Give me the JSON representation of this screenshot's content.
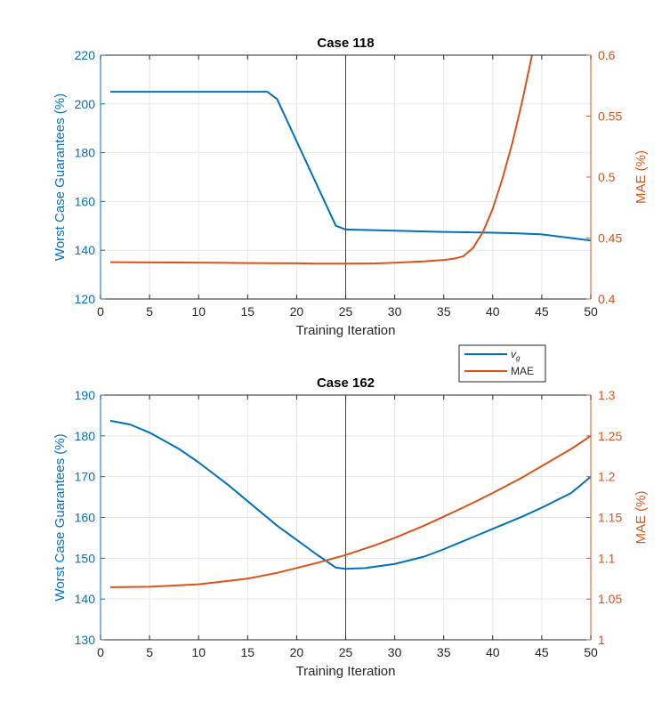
{
  "colors": {
    "left": "#0072BD",
    "right": "#D95319",
    "grid": "#e6e6e6",
    "axis": "#262626",
    "marker": "#404040"
  },
  "legend": {
    "items": [
      {
        "label": "v",
        "sub": "g"
      },
      {
        "label": "MAE",
        "sub": ""
      }
    ]
  },
  "chart_data": [
    {
      "type": "line",
      "title": "Case 118",
      "xlabel": "Training Iteration",
      "ylabel_left": "Worst Case Guarantees (%)",
      "ylabel_right": "MAE (%)",
      "xlim": [
        0,
        50
      ],
      "ylim_left": [
        120,
        220
      ],
      "ylim_right": [
        0.4,
        0.6
      ],
      "xticks": [
        0,
        5,
        10,
        15,
        20,
        25,
        30,
        35,
        40,
        45,
        50
      ],
      "yticks_left": [
        120,
        140,
        160,
        180,
        200,
        220
      ],
      "yticks_right": [
        0.4,
        0.45,
        0.5,
        0.55,
        0.6
      ],
      "ytick_labels_left": [
        "120",
        "140",
        "160",
        "180",
        "200",
        "220"
      ],
      "ytick_labels_right": [
        "0.4",
        "0.45",
        "0.5",
        "0.55",
        "0.6"
      ],
      "vline_x": 25,
      "series": [
        {
          "name": "v_g",
          "axis": "left",
          "x": [
            1,
            5,
            10,
            15,
            17,
            18,
            24,
            25,
            30,
            35,
            40,
            42,
            45,
            48,
            50
          ],
          "y": [
            205,
            205,
            205,
            205,
            205,
            202,
            150,
            148.5,
            148,
            147.5,
            147.2,
            147,
            146.5,
            145,
            144
          ]
        },
        {
          "name": "MAE",
          "axis": "right",
          "x": [
            1,
            5,
            10,
            15,
            20,
            22,
            25,
            28,
            30,
            33,
            35,
            36,
            37,
            38,
            39,
            40,
            41,
            42,
            43,
            44
          ],
          "y": [
            0.4302,
            0.43,
            0.4298,
            0.4295,
            0.4293,
            0.429,
            0.429,
            0.4292,
            0.4297,
            0.4308,
            0.432,
            0.433,
            0.435,
            0.442,
            0.455,
            0.474,
            0.499,
            0.528,
            0.562,
            0.6
          ]
        }
      ]
    },
    {
      "type": "line",
      "title": "Case 162",
      "xlabel": "Training Iteration",
      "ylabel_left": "Worst Case Guarantees (%)",
      "ylabel_right": "MAE (%)",
      "xlim": [
        0,
        50
      ],
      "ylim_left": [
        130,
        190
      ],
      "ylim_right": [
        1,
        1.3
      ],
      "xticks": [
        0,
        5,
        10,
        15,
        20,
        25,
        30,
        35,
        40,
        45,
        50
      ],
      "yticks_left": [
        130,
        140,
        150,
        160,
        170,
        180,
        190
      ],
      "yticks_right": [
        1,
        1.05,
        1.1,
        1.15,
        1.2,
        1.25,
        1.3
      ],
      "ytick_labels_left": [
        "130",
        "140",
        "150",
        "160",
        "170",
        "180",
        "190"
      ],
      "ytick_labels_right": [
        "1",
        "1.05",
        "1.1",
        "1.15",
        "1.2",
        "1.25",
        "1.3"
      ],
      "vline_x": 25,
      "series": [
        {
          "name": "v_g",
          "axis": "left",
          "x": [
            1,
            3,
            5,
            8,
            10,
            13,
            15,
            18,
            20,
            22,
            24,
            25,
            27,
            30,
            33,
            35,
            38,
            40,
            43,
            45,
            48,
            50
          ],
          "y": [
            183.7,
            182.8,
            180.8,
            176.8,
            173.5,
            168,
            164,
            158,
            154.5,
            151,
            147.7,
            147.4,
            147.6,
            148.6,
            150.4,
            152.2,
            155.2,
            157.2,
            160.2,
            162.4,
            166,
            170
          ]
        },
        {
          "name": "MAE",
          "axis": "right",
          "x": [
            1,
            5,
            10,
            15,
            18,
            20,
            22,
            25,
            28,
            30,
            33,
            35,
            38,
            40,
            43,
            45,
            48,
            50
          ],
          "y": [
            1.0645,
            1.065,
            1.068,
            1.075,
            1.082,
            1.088,
            1.094,
            1.104,
            1.116,
            1.125,
            1.14,
            1.151,
            1.168,
            1.18,
            1.199,
            1.213,
            1.234,
            1.25
          ]
        }
      ]
    }
  ]
}
